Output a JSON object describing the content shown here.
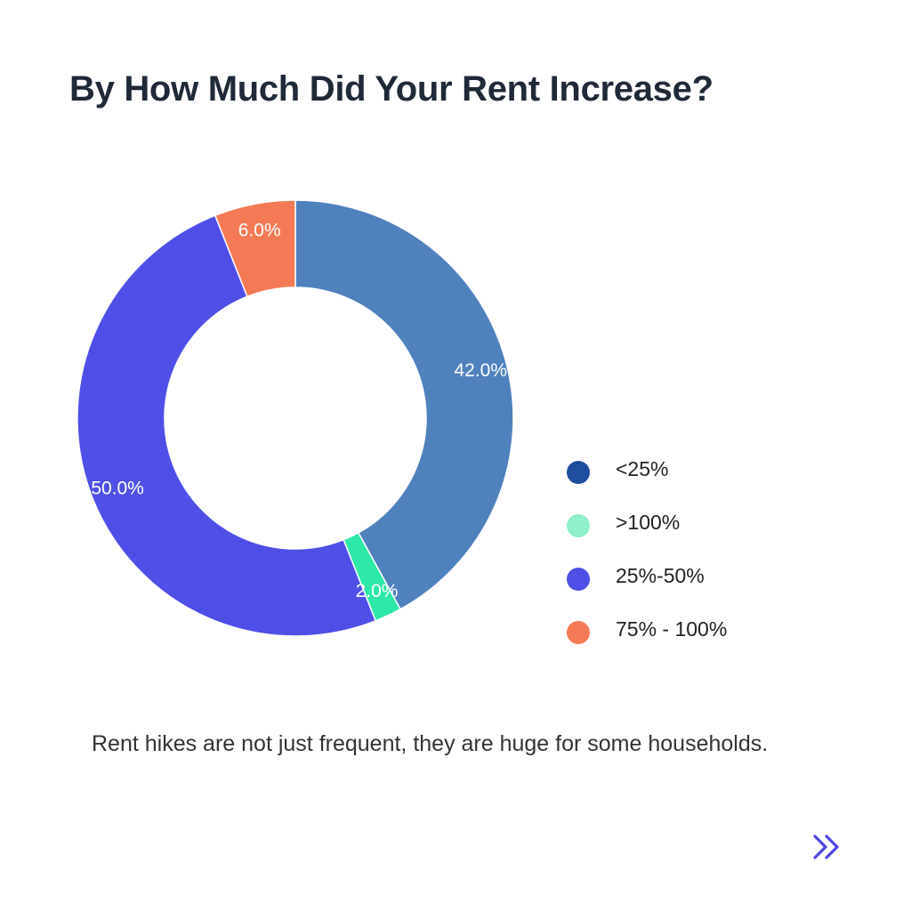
{
  "title": "By How Much Did Your Rent Increase?",
  "caption": "Rent hikes are not just frequent, they are huge for some households.",
  "colors": {
    "title": "#1f2937",
    "next_icon": "#4f46e5"
  },
  "icons": {
    "next": "double-chevron-right-icon"
  },
  "chart_data": {
    "type": "pie",
    "variant": "donut",
    "title": "By How Much Did Your Rent Increase?",
    "unit": "%",
    "legend_position": "right",
    "slices": [
      {
        "label": "<25%",
        "value": 42.0,
        "display": "42.0%",
        "color": "#4f81bd",
        "legend_color": "#1f4e9e"
      },
      {
        "label": ">100%",
        "value": 2.0,
        "display": "2.0%",
        "color": "#2ee8a8",
        "legend_color": "#8eefc9"
      },
      {
        "label": "25%-50%",
        "value": 50.0,
        "display": "50.0%",
        "color": "#4f4fe8",
        "legend_color": "#4f4fe8"
      },
      {
        "label": "75% - 100%",
        "value": 6.0,
        "display": "6.0%",
        "color": "#f47a55",
        "legend_color": "#f47a55"
      }
    ]
  }
}
